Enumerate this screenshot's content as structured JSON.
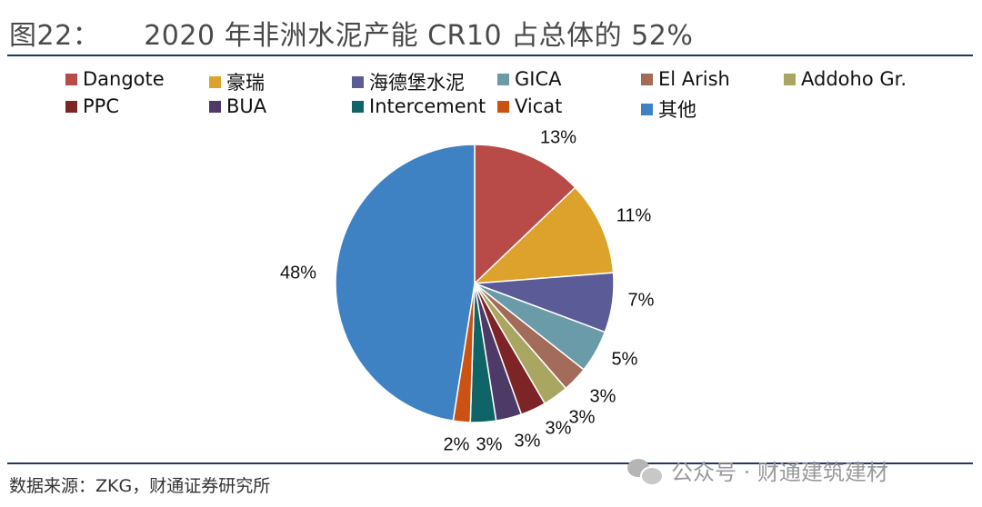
{
  "header": {
    "figure_label": "图22：",
    "title": "2020 年非洲水泥产能 CR10 占总体的 52%"
  },
  "footer": {
    "source": "数据来源：ZKG，财通证券研究所",
    "watermark": "公众号 · 财通建筑建材"
  },
  "chart_data": {
    "type": "pie",
    "start_angle_deg": 90,
    "direction": "clockwise",
    "slices": [
      {
        "name": "Dangote",
        "value": 13,
        "label": "13%",
        "color": "#b84a47"
      },
      {
        "name": "豪瑞",
        "value": 11,
        "label": "11%",
        "color": "#dca22b"
      },
      {
        "name": "海德堡水泥",
        "value": 7,
        "label": "7%",
        "color": "#5b5b97"
      },
      {
        "name": "GICA",
        "value": 5,
        "label": "5%",
        "color": "#6a9ba8"
      },
      {
        "name": "El Arish",
        "value": 3,
        "label": "3%",
        "color": "#a36b5a"
      },
      {
        "name": "Addoho Gr.",
        "value": 3,
        "label": "3%",
        "color": "#a9a662"
      },
      {
        "name": "PPC",
        "value": 3,
        "label": "3%",
        "color": "#7d2426"
      },
      {
        "name": "BUA",
        "value": 3,
        "label": "3%",
        "color": "#4d3a67"
      },
      {
        "name": "Intercement",
        "value": 3,
        "label": "3%",
        "color": "#0f6467"
      },
      {
        "name": "Vicat",
        "value": 2,
        "label": "2%",
        "color": "#cc5214"
      },
      {
        "name": "其他",
        "value": 48,
        "label": "48%",
        "color": "#3e82c4"
      }
    ],
    "legend_order": [
      "Dangote",
      "豪瑞",
      "海德堡水泥",
      "GICA",
      "El Arish",
      "Addoho Gr.",
      "PPC",
      "BUA",
      "Intercement",
      "Vicat",
      "其他"
    ]
  }
}
